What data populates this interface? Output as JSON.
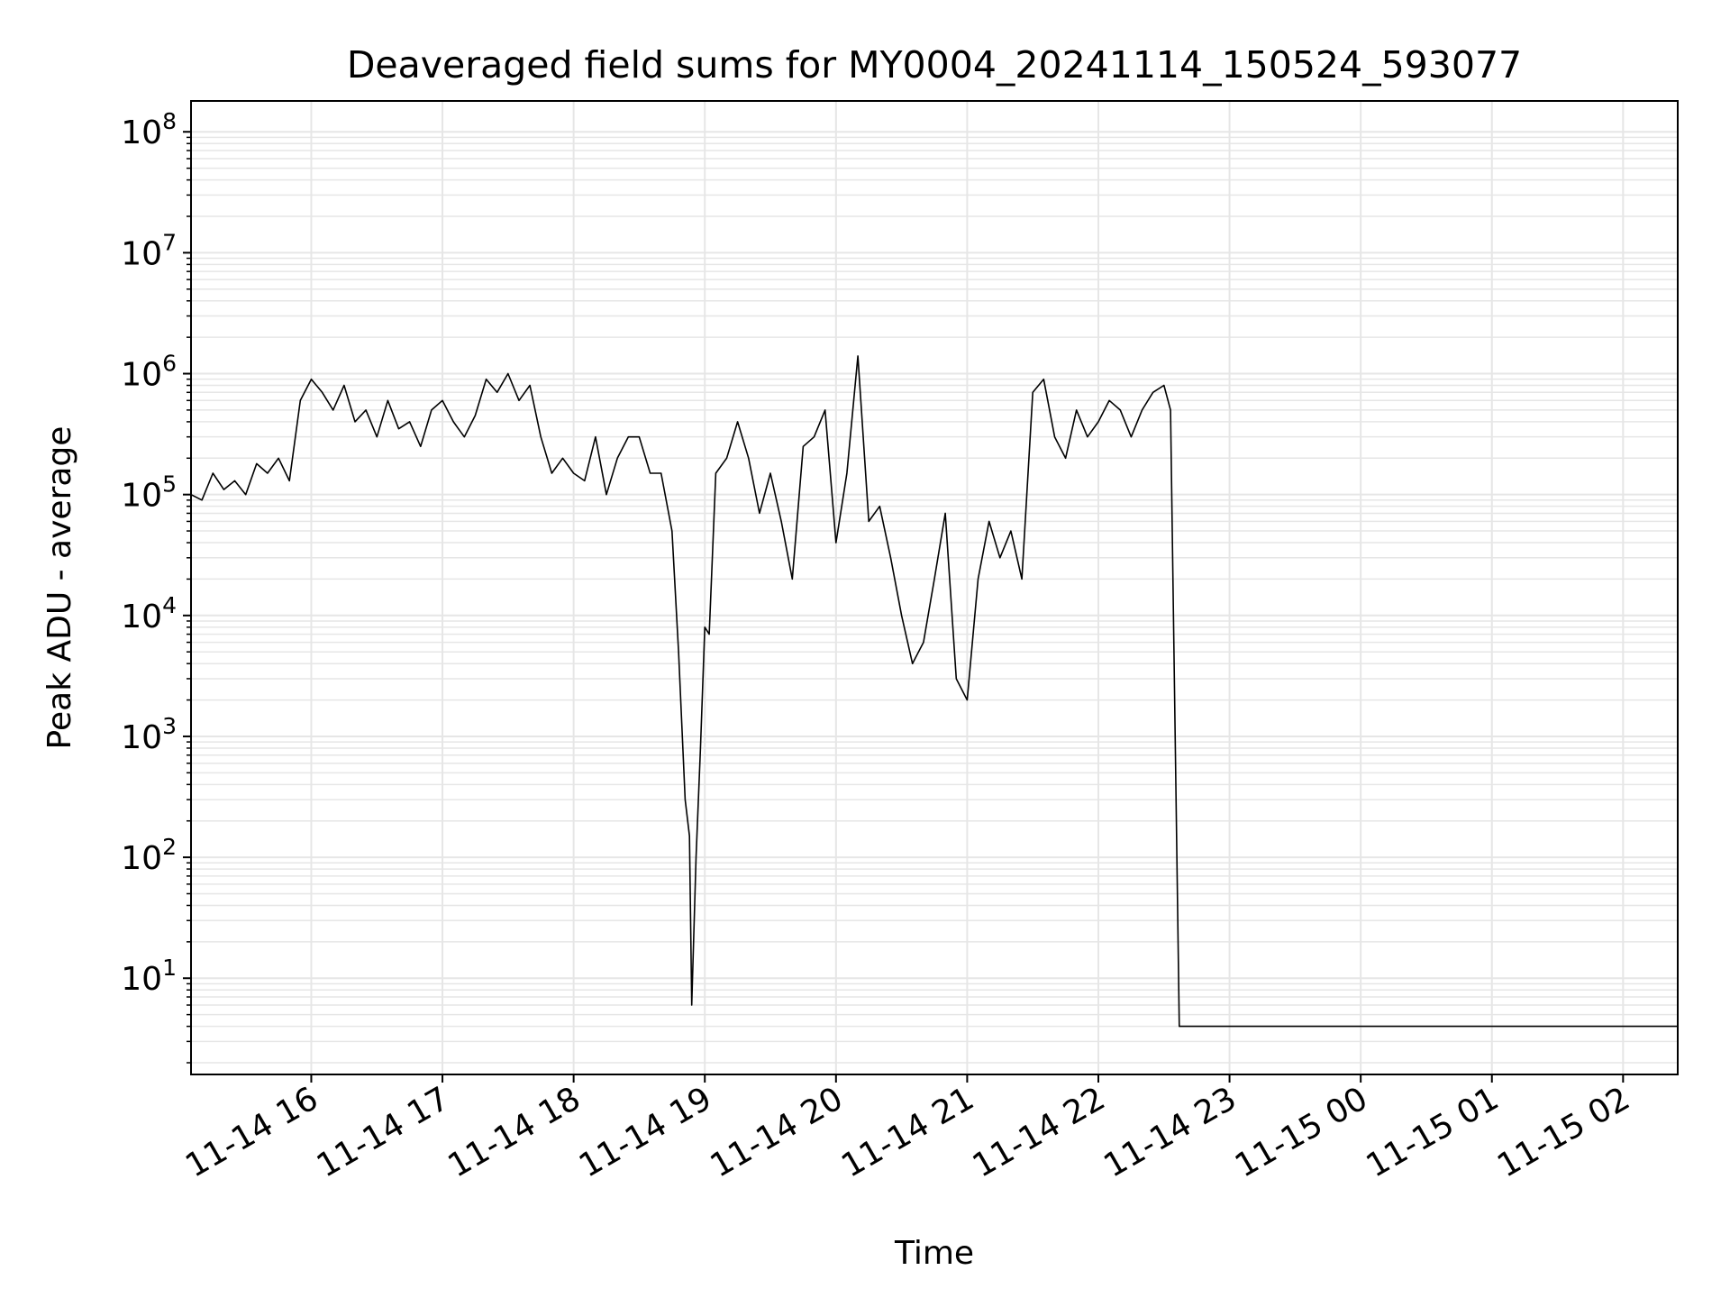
{
  "chart_data": {
    "type": "line",
    "title": "Deaveraged field sums for MY0004_20241114_150524_593077",
    "xlabel": "Time",
    "ylabel": "Peak ADU - average",
    "yscale": "log",
    "ylim": [
      1.6,
      180000000
    ],
    "xlim": [
      "2024-11-14 15:05",
      "2024-11-15 02:25"
    ],
    "grid": true,
    "grid_minor": true,
    "line_color": "#000000",
    "grid_color": "#e6e6e6",
    "x_ticks": [
      {
        "t": "2024-11-14 16:00",
        "label": "11-14 16"
      },
      {
        "t": "2024-11-14 17:00",
        "label": "11-14 17"
      },
      {
        "t": "2024-11-14 18:00",
        "label": "11-14 18"
      },
      {
        "t": "2024-11-14 19:00",
        "label": "11-14 19"
      },
      {
        "t": "2024-11-14 20:00",
        "label": "11-14 20"
      },
      {
        "t": "2024-11-14 21:00",
        "label": "11-14 21"
      },
      {
        "t": "2024-11-14 22:00",
        "label": "11-14 22"
      },
      {
        "t": "2024-11-14 23:00",
        "label": "11-14 23"
      },
      {
        "t": "2024-11-15 00:00",
        "label": "11-15 00"
      },
      {
        "t": "2024-11-15 01:00",
        "label": "11-15 01"
      },
      {
        "t": "2024-11-15 02:00",
        "label": "11-15 02"
      }
    ],
    "y_ticks": [
      {
        "value": 10,
        "base": "10",
        "exp": "1"
      },
      {
        "value": 100,
        "base": "10",
        "exp": "2"
      },
      {
        "value": 1000,
        "base": "10",
        "exp": "3"
      },
      {
        "value": 10000,
        "base": "10",
        "exp": "4"
      },
      {
        "value": 100000,
        "base": "10",
        "exp": "5"
      },
      {
        "value": 1000000,
        "base": "10",
        "exp": "6"
      },
      {
        "value": 10000000,
        "base": "10",
        "exp": "7"
      },
      {
        "value": 100000000,
        "base": "10",
        "exp": "8"
      }
    ],
    "series": [
      {
        "points": [
          [
            "2024-11-14 15:05",
            100000
          ],
          [
            "2024-11-14 15:10",
            90000
          ],
          [
            "2024-11-14 15:15",
            150000
          ],
          [
            "2024-11-14 15:20",
            110000
          ],
          [
            "2024-11-14 15:25",
            130000
          ],
          [
            "2024-11-14 15:30",
            100000
          ],
          [
            "2024-11-14 15:35",
            180000
          ],
          [
            "2024-11-14 15:40",
            150000
          ],
          [
            "2024-11-14 15:45",
            200000
          ],
          [
            "2024-11-14 15:50",
            130000
          ],
          [
            "2024-11-14 15:55",
            600000
          ],
          [
            "2024-11-14 16:00",
            900000
          ],
          [
            "2024-11-14 16:05",
            700000
          ],
          [
            "2024-11-14 16:10",
            500000
          ],
          [
            "2024-11-14 16:15",
            800000
          ],
          [
            "2024-11-14 16:20",
            400000
          ],
          [
            "2024-11-14 16:25",
            500000
          ],
          [
            "2024-11-14 16:30",
            300000
          ],
          [
            "2024-11-14 16:35",
            600000
          ],
          [
            "2024-11-14 16:40",
            350000
          ],
          [
            "2024-11-14 16:45",
            400000
          ],
          [
            "2024-11-14 16:50",
            250000
          ],
          [
            "2024-11-14 16:55",
            500000
          ],
          [
            "2024-11-14 17:00",
            600000
          ],
          [
            "2024-11-14 17:05",
            400000
          ],
          [
            "2024-11-14 17:10",
            300000
          ],
          [
            "2024-11-14 17:15",
            450000
          ],
          [
            "2024-11-14 17:20",
            900000
          ],
          [
            "2024-11-14 17:25",
            700000
          ],
          [
            "2024-11-14 17:30",
            1000000
          ],
          [
            "2024-11-14 17:35",
            600000
          ],
          [
            "2024-11-14 17:40",
            800000
          ],
          [
            "2024-11-14 17:45",
            300000
          ],
          [
            "2024-11-14 17:50",
            150000
          ],
          [
            "2024-11-14 17:55",
            200000
          ],
          [
            "2024-11-14 18:00",
            150000
          ],
          [
            "2024-11-14 18:05",
            130000
          ],
          [
            "2024-11-14 18:10",
            300000
          ],
          [
            "2024-11-14 18:15",
            100000
          ],
          [
            "2024-11-14 18:20",
            200000
          ],
          [
            "2024-11-14 18:25",
            300000
          ],
          [
            "2024-11-14 18:30",
            300000
          ],
          [
            "2024-11-14 18:35",
            150000
          ],
          [
            "2024-11-14 18:40",
            150000
          ],
          [
            "2024-11-14 18:45",
            50000
          ],
          [
            "2024-11-14 18:48",
            5000
          ],
          [
            "2024-11-14 18:51",
            300
          ],
          [
            "2024-11-14 18:53",
            150
          ],
          [
            "2024-11-14 18:54",
            6
          ],
          [
            "2024-11-14 18:56",
            100
          ],
          [
            "2024-11-14 18:58",
            800
          ],
          [
            "2024-11-14 19:00",
            8000
          ],
          [
            "2024-11-14 19:02",
            7000
          ],
          [
            "2024-11-14 19:05",
            150000
          ],
          [
            "2024-11-14 19:10",
            200000
          ],
          [
            "2024-11-14 19:15",
            400000
          ],
          [
            "2024-11-14 19:20",
            200000
          ],
          [
            "2024-11-14 19:25",
            70000
          ],
          [
            "2024-11-14 19:30",
            150000
          ],
          [
            "2024-11-14 19:35",
            60000
          ],
          [
            "2024-11-14 19:40",
            20000
          ],
          [
            "2024-11-14 19:45",
            250000
          ],
          [
            "2024-11-14 19:50",
            300000
          ],
          [
            "2024-11-14 19:55",
            500000
          ],
          [
            "2024-11-14 20:00",
            40000
          ],
          [
            "2024-11-14 20:05",
            150000
          ],
          [
            "2024-11-14 20:10",
            1400000
          ],
          [
            "2024-11-14 20:15",
            60000
          ],
          [
            "2024-11-14 20:20",
            80000
          ],
          [
            "2024-11-14 20:25",
            30000
          ],
          [
            "2024-11-14 20:30",
            10000
          ],
          [
            "2024-11-14 20:35",
            4000
          ],
          [
            "2024-11-14 20:40",
            6000
          ],
          [
            "2024-11-14 20:45",
            20000
          ],
          [
            "2024-11-14 20:50",
            70000
          ],
          [
            "2024-11-14 20:55",
            3000
          ],
          [
            "2024-11-14 21:00",
            2000
          ],
          [
            "2024-11-14 21:05",
            20000
          ],
          [
            "2024-11-14 21:10",
            60000
          ],
          [
            "2024-11-14 21:15",
            30000
          ],
          [
            "2024-11-14 21:20",
            50000
          ],
          [
            "2024-11-14 21:25",
            20000
          ],
          [
            "2024-11-14 21:30",
            700000
          ],
          [
            "2024-11-14 21:35",
            900000
          ],
          [
            "2024-11-14 21:40",
            300000
          ],
          [
            "2024-11-14 21:45",
            200000
          ],
          [
            "2024-11-14 21:50",
            500000
          ],
          [
            "2024-11-14 21:55",
            300000
          ],
          [
            "2024-11-14 22:00",
            400000
          ],
          [
            "2024-11-14 22:05",
            600000
          ],
          [
            "2024-11-14 22:10",
            500000
          ],
          [
            "2024-11-14 22:15",
            300000
          ],
          [
            "2024-11-14 22:20",
            500000
          ],
          [
            "2024-11-14 22:25",
            700000
          ],
          [
            "2024-11-14 22:30",
            800000
          ],
          [
            "2024-11-14 22:33",
            500000
          ],
          [
            "2024-11-14 22:37",
            4
          ],
          [
            "2024-11-15 02:25",
            4
          ]
        ]
      }
    ]
  }
}
